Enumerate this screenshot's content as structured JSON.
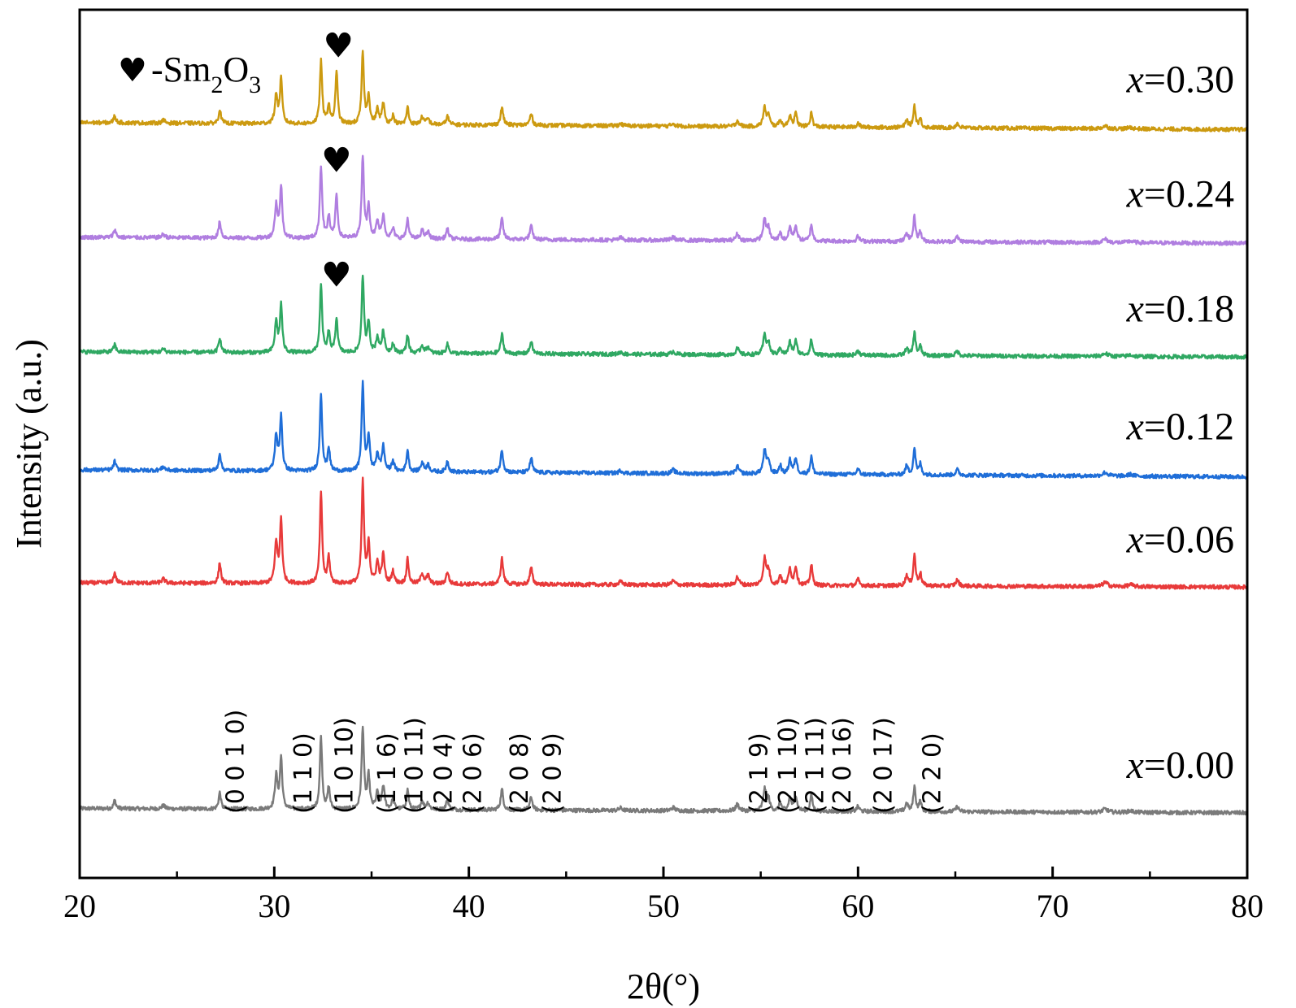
{
  "chart_data": {
    "type": "line",
    "title": "",
    "xlabel": "2θ(°)",
    "ylabel": "Intensity (a.u.)",
    "xlim": [
      20,
      80
    ],
    "x_ticks": [
      20,
      30,
      40,
      50,
      60,
      70,
      80
    ],
    "grid": false,
    "legend": {
      "symbol": "♥",
      "text_prefix": "-Sm",
      "subscript_1": "2",
      "text_mid": "O",
      "subscript_2": "3",
      "placement": "top-left"
    },
    "peaks": [
      {
        "pos": 21.8,
        "w": 0.07,
        "h": 0.1
      },
      {
        "pos": 24.3,
        "w": 0.1,
        "h": 0.04
      },
      {
        "pos": 27.2,
        "w": 0.07,
        "h": 0.2
      },
      {
        "pos": 30.1,
        "w": 0.08,
        "h": 0.4
      },
      {
        "pos": 30.35,
        "w": 0.07,
        "h": 0.62
      },
      {
        "pos": 32.4,
        "w": 0.07,
        "h": 0.88
      },
      {
        "pos": 32.8,
        "w": 0.07,
        "h": 0.26
      },
      {
        "pos": 34.55,
        "w": 0.07,
        "h": 1.0
      },
      {
        "pos": 34.85,
        "w": 0.07,
        "h": 0.4
      },
      {
        "pos": 35.3,
        "w": 0.08,
        "h": 0.2
      },
      {
        "pos": 35.6,
        "w": 0.08,
        "h": 0.28
      },
      {
        "pos": 36.1,
        "w": 0.08,
        "h": 0.12
      },
      {
        "pos": 36.85,
        "w": 0.07,
        "h": 0.24
      },
      {
        "pos": 37.6,
        "w": 0.09,
        "h": 0.1
      },
      {
        "pos": 37.9,
        "w": 0.09,
        "h": 0.08
      },
      {
        "pos": 38.9,
        "w": 0.08,
        "h": 0.12
      },
      {
        "pos": 41.7,
        "w": 0.08,
        "h": 0.25
      },
      {
        "pos": 43.2,
        "w": 0.08,
        "h": 0.16
      },
      {
        "pos": 47.8,
        "w": 0.1,
        "h": 0.03
      },
      {
        "pos": 50.5,
        "w": 0.1,
        "h": 0.04
      },
      {
        "pos": 53.8,
        "w": 0.1,
        "h": 0.08
      },
      {
        "pos": 55.2,
        "w": 0.09,
        "h": 0.26
      },
      {
        "pos": 55.4,
        "w": 0.08,
        "h": 0.14
      },
      {
        "pos": 56.0,
        "w": 0.07,
        "h": 0.1
      },
      {
        "pos": 56.5,
        "w": 0.08,
        "h": 0.16
      },
      {
        "pos": 56.8,
        "w": 0.08,
        "h": 0.18
      },
      {
        "pos": 57.6,
        "w": 0.07,
        "h": 0.2
      },
      {
        "pos": 60.0,
        "w": 0.08,
        "h": 0.06
      },
      {
        "pos": 62.5,
        "w": 0.08,
        "h": 0.1
      },
      {
        "pos": 62.9,
        "w": 0.07,
        "h": 0.3
      },
      {
        "pos": 63.2,
        "w": 0.07,
        "h": 0.12
      },
      {
        "pos": 65.1,
        "w": 0.09,
        "h": 0.06
      },
      {
        "pos": 72.7,
        "w": 0.15,
        "h": 0.04
      },
      {
        "pos": 74.0,
        "w": 0.15,
        "h": 0.02
      }
    ],
    "series": [
      {
        "name": "x=0.00",
        "label_prefix": "x",
        "label_value": "=0.00",
        "color": "#7a7a7a",
        "baseline": 0.08,
        "amp": 0.095,
        "tilt": 0.005,
        "sm2o3": 0
      },
      {
        "name": "x=0.06",
        "label_prefix": "x",
        "label_value": "=0.06",
        "color": "#e83a3a",
        "baseline": 0.34,
        "amp": 0.118,
        "tilt": 0.005,
        "sm2o3": 0
      },
      {
        "name": "x=0.12",
        "label_prefix": "x",
        "label_value": "=0.12",
        "color": "#1f6ed8",
        "baseline": 0.47,
        "amp": 0.102,
        "tilt": 0.008,
        "sm2o3": 0
      },
      {
        "name": "x=0.18",
        "label_prefix": "x",
        "label_value": "=0.18",
        "color": "#2fa862",
        "baseline": 0.606,
        "amp": 0.088,
        "tilt": 0.006,
        "sm2o3": 0.04
      },
      {
        "name": "x=0.24",
        "label_prefix": "x",
        "label_value": "=0.24",
        "color": "#b07ee0",
        "baseline": 0.738,
        "amp": 0.095,
        "tilt": 0.007,
        "sm2o3": 0.05
      },
      {
        "name": "x=0.30",
        "label_prefix": "x",
        "label_value": "=0.30",
        "color": "#cc9a10",
        "baseline": 0.87,
        "amp": 0.082,
        "tilt": 0.008,
        "sm2o3": 0.06
      }
    ],
    "sm2o3_peak": 33.2,
    "sm2o3_markers": [
      {
        "series": "x=0.30",
        "x": 33.3
      },
      {
        "series": "x=0.24",
        "x": 33.2
      },
      {
        "series": "x=0.18",
        "x": 33.2
      }
    ],
    "hkl_annotations": [
      {
        "label": "(0 0 1 0)",
        "x": 28.0
      },
      {
        "label": "(1 1 0)",
        "x": 31.5
      },
      {
        "label": "(1 0 10)",
        "x": 33.6
      },
      {
        "label": "(1 1 6)",
        "x": 35.8
      },
      {
        "label": "(1 0 11)",
        "x": 37.2
      },
      {
        "label": "(2 0 4)",
        "x": 38.7
      },
      {
        "label": "(2 0 6)",
        "x": 40.2
      },
      {
        "label": "(2 0 8)",
        "x": 42.6
      },
      {
        "label": "(2 0 9)",
        "x": 44.3
      },
      {
        "label": "(2 1 9)",
        "x": 54.9
      },
      {
        "label": "(2 1 10)",
        "x": 56.4
      },
      {
        "label": "(2 1 11)",
        "x": 57.8
      },
      {
        "label": "(2 0 16)",
        "x": 59.2
      },
      {
        "label": "(2 0 17)",
        "x": 61.3
      },
      {
        "label": "(2 2 0)",
        "x": 63.8
      }
    ]
  }
}
